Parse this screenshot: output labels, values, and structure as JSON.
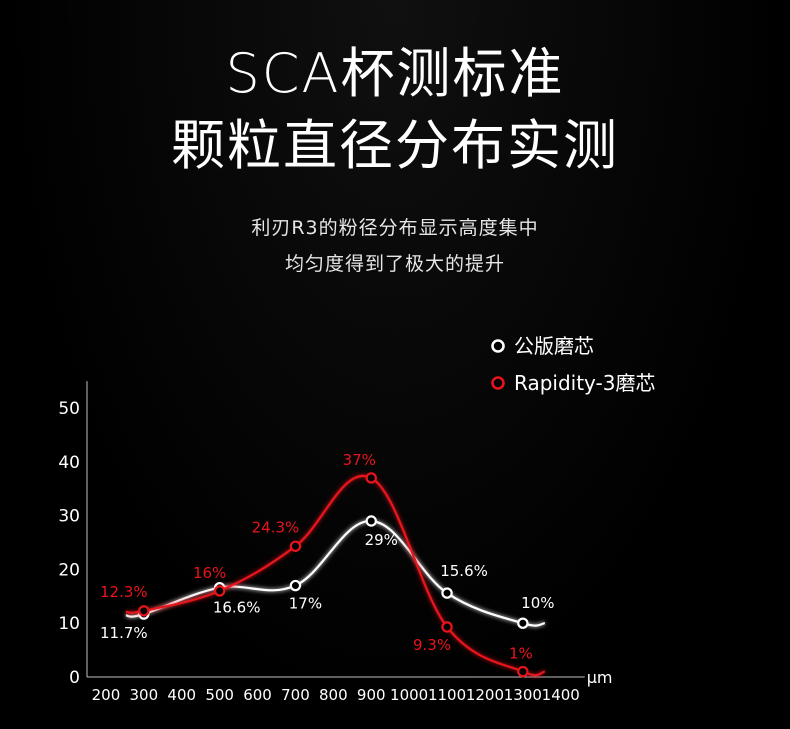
{
  "header": {
    "title_line1": "SCA杯测标准",
    "title_line2": "颗粒直径分布实测",
    "subtitle_line1": "利刃R3的粉径分布显示高度集中",
    "subtitle_line2": "均匀度得到了极大的提升"
  },
  "colors": {
    "background": "#000000",
    "text": "#ffffff",
    "stock_series": "#ffffff",
    "rapidity_series": "#e8141c"
  },
  "chart_data": {
    "type": "line",
    "title": "",
    "xlabel": "μm",
    "ylabel": "",
    "x_ticks": [
      200,
      300,
      400,
      500,
      600,
      700,
      800,
      900,
      1000,
      1100,
      1200,
      1300,
      1400
    ],
    "y_ticks": [
      0,
      10,
      20,
      30,
      40,
      50
    ],
    "xlim": [
      150,
      1450
    ],
    "ylim": [
      0,
      55
    ],
    "grid": false,
    "legend_position": "top-right",
    "series": [
      {
        "name": "公版磨芯",
        "color": "#ffffff",
        "x": [
          300,
          500,
          700,
          900,
          1100,
          1300
        ],
        "values": [
          11.7,
          16.6,
          17,
          29,
          15.6,
          10
        ],
        "labels": [
          "11.7%",
          "16.6%",
          "17%",
          "29%",
          "15.6%",
          "10%"
        ]
      },
      {
        "name": "Rapidity-3磨芯",
        "color": "#e8141c",
        "x": [
          300,
          500,
          700,
          900,
          1100,
          1300
        ],
        "values": [
          12.3,
          16,
          24.3,
          37,
          9.3,
          1
        ],
        "labels": [
          "12.3%",
          "16%",
          "24.3%",
          "37%",
          "9.3%",
          "1%"
        ]
      }
    ]
  }
}
